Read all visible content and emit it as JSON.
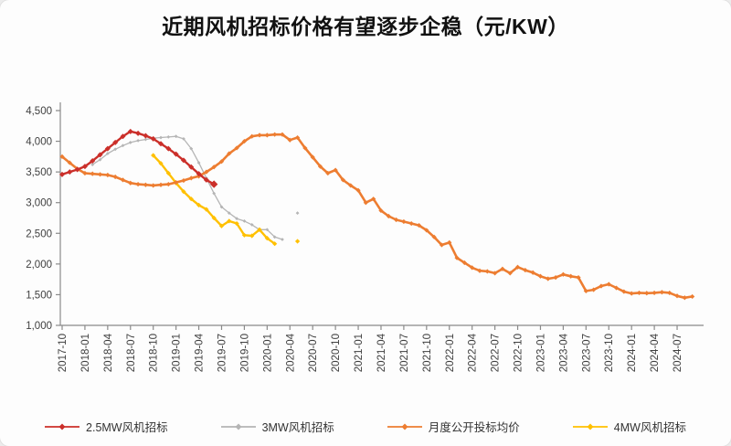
{
  "title": "近期风机招标价格有望逐步企稳（元/KW）",
  "colors": {
    "red": "#cb2f2a",
    "gray": "#b5b5b5",
    "orange": "#ed7d31",
    "yellow": "#ffc000",
    "axis": "#8a8a8a",
    "tick_text": "#404040",
    "title_text": "#111111"
  },
  "chart_data": {
    "type": "line",
    "title": "近期风机招标价格有望逐步企稳（元/KW）",
    "y_unit": "元/KW",
    "ylim": [
      1000,
      4500
    ],
    "y_tick_step": 500,
    "y_tick_labels": [
      "4,500",
      "4,000",
      "3,500",
      "3,000",
      "2,500",
      "2,000",
      "1,500",
      "1,000"
    ],
    "x_tick_labels": [
      "2017-10",
      "2018-01",
      "2018-04",
      "2018-07",
      "2018-10",
      "2019-01",
      "2019-04",
      "2019-07",
      "2019-10",
      "2020-01",
      "2020-04",
      "2020-07",
      "2020-10",
      "2021-01",
      "2021-04",
      "2021-07",
      "2021-10",
      "2022-01",
      "2022-04",
      "2022-07",
      "2022-10",
      "2023-01",
      "2023-04",
      "2023-07",
      "2023-10",
      "2024-01",
      "2024-04",
      "2024-07"
    ],
    "grid": false,
    "legend_position": "bottom",
    "series": [
      {
        "name": "2.5MW风机招标",
        "color": "#cb2f2a",
        "points": [
          [
            "2017-10",
            3460
          ],
          [
            "2017-11",
            3500
          ],
          [
            "2017-12",
            3540
          ],
          [
            "2018-01",
            3590
          ],
          [
            "2018-02",
            3680
          ],
          [
            "2018-03",
            3780
          ],
          [
            "2018-04",
            3880
          ],
          [
            "2018-05",
            3980
          ],
          [
            "2018-06",
            4080
          ],
          [
            "2018-07",
            4160
          ],
          [
            "2018-08",
            4130
          ],
          [
            "2018-09",
            4090
          ],
          [
            "2018-10",
            4040
          ],
          [
            "2018-11",
            3960
          ],
          [
            "2018-12",
            3880
          ],
          [
            "2019-01",
            3790
          ],
          [
            "2019-02",
            3690
          ],
          [
            "2019-03",
            3580
          ],
          [
            "2019-04",
            3470
          ],
          [
            "2019-05",
            3370
          ],
          [
            "2019-06",
            3300
          ]
        ]
      },
      {
        "name": "3MW风机招标",
        "color": "#b5b5b5",
        "points": [
          [
            "2018-02",
            3620
          ],
          [
            "2018-03",
            3700
          ],
          [
            "2018-04",
            3800
          ],
          [
            "2018-05",
            3870
          ],
          [
            "2018-06",
            3930
          ],
          [
            "2018-07",
            3980
          ],
          [
            "2018-08",
            4010
          ],
          [
            "2018-09",
            4030
          ],
          [
            "2018-10",
            4050
          ],
          [
            "2018-11",
            4060
          ],
          [
            "2018-12",
            4070
          ],
          [
            "2019-01",
            4080
          ],
          [
            "2019-02",
            4040
          ],
          [
            "2019-03",
            3880
          ],
          [
            "2019-04",
            3650
          ],
          [
            "2019-05",
            3400
          ],
          [
            "2019-06",
            3150
          ],
          [
            "2019-07",
            2930
          ],
          [
            "2019-08",
            2830
          ],
          [
            "2019-09",
            2740
          ],
          [
            "2019-10",
            2700
          ],
          [
            "2019-11",
            2640
          ],
          [
            "2019-12",
            2560
          ],
          [
            "2020-01",
            2560
          ],
          [
            "2020-02",
            2440
          ],
          [
            "2020-03",
            2400
          ],
          [
            "2020-05",
            2830
          ]
        ]
      },
      {
        "name": "月度公开投标均价",
        "color": "#ed7d31",
        "points": [
          [
            "2017-10",
            3750
          ],
          [
            "2017-11",
            3650
          ],
          [
            "2017-12",
            3550
          ],
          [
            "2018-01",
            3480
          ],
          [
            "2018-02",
            3470
          ],
          [
            "2018-03",
            3460
          ],
          [
            "2018-04",
            3450
          ],
          [
            "2018-05",
            3420
          ],
          [
            "2018-06",
            3370
          ],
          [
            "2018-07",
            3320
          ],
          [
            "2018-08",
            3300
          ],
          [
            "2018-09",
            3290
          ],
          [
            "2018-10",
            3280
          ],
          [
            "2018-11",
            3290
          ],
          [
            "2018-12",
            3300
          ],
          [
            "2019-01",
            3330
          ],
          [
            "2019-02",
            3360
          ],
          [
            "2019-03",
            3400
          ],
          [
            "2019-04",
            3430
          ],
          [
            "2019-05",
            3500
          ],
          [
            "2019-06",
            3580
          ],
          [
            "2019-07",
            3670
          ],
          [
            "2019-08",
            3800
          ],
          [
            "2019-09",
            3890
          ],
          [
            "2019-10",
            4000
          ],
          [
            "2019-11",
            4080
          ],
          [
            "2019-12",
            4100
          ],
          [
            "2020-01",
            4100
          ],
          [
            "2020-02",
            4110
          ],
          [
            "2020-03",
            4110
          ],
          [
            "2020-04",
            4020
          ],
          [
            "2020-05",
            4060
          ],
          [
            "2020-06",
            3890
          ],
          [
            "2020-07",
            3740
          ],
          [
            "2020-08",
            3590
          ],
          [
            "2020-09",
            3480
          ],
          [
            "2020-10",
            3530
          ],
          [
            "2020-11",
            3370
          ],
          [
            "2020-12",
            3280
          ],
          [
            "2021-01",
            3200
          ],
          [
            "2021-02",
            3000
          ],
          [
            "2021-03",
            3060
          ],
          [
            "2021-04",
            2870
          ],
          [
            "2021-05",
            2780
          ],
          [
            "2021-06",
            2720
          ],
          [
            "2021-07",
            2690
          ],
          [
            "2021-08",
            2660
          ],
          [
            "2021-09",
            2630
          ],
          [
            "2021-10",
            2550
          ],
          [
            "2021-11",
            2440
          ],
          [
            "2021-12",
            2310
          ],
          [
            "2022-01",
            2350
          ],
          [
            "2022-02",
            2100
          ],
          [
            "2022-03",
            2020
          ],
          [
            "2022-04",
            1940
          ],
          [
            "2022-05",
            1890
          ],
          [
            "2022-06",
            1880
          ],
          [
            "2022-07",
            1850
          ],
          [
            "2022-08",
            1920
          ],
          [
            "2022-09",
            1850
          ],
          [
            "2022-10",
            1950
          ],
          [
            "2022-11",
            1900
          ],
          [
            "2022-12",
            1860
          ],
          [
            "2023-01",
            1800
          ],
          [
            "2023-02",
            1760
          ],
          [
            "2023-03",
            1780
          ],
          [
            "2023-04",
            1830
          ],
          [
            "2023-05",
            1800
          ],
          [
            "2023-06",
            1780
          ],
          [
            "2023-07",
            1560
          ],
          [
            "2023-08",
            1580
          ],
          [
            "2023-09",
            1640
          ],
          [
            "2023-10",
            1670
          ],
          [
            "2023-11",
            1610
          ],
          [
            "2023-12",
            1550
          ],
          [
            "2024-01",
            1520
          ],
          [
            "2024-02",
            1530
          ],
          [
            "2024-03",
            1525
          ],
          [
            "2024-04",
            1530
          ],
          [
            "2024-05",
            1540
          ],
          [
            "2024-06",
            1530
          ],
          [
            "2024-07",
            1480
          ],
          [
            "2024-08",
            1450
          ],
          [
            "2024-09",
            1470
          ]
        ]
      },
      {
        "name": "4MW风机招标",
        "color": "#ffc000",
        "points": [
          [
            "2018-10",
            3770
          ],
          [
            "2018-11",
            3640
          ],
          [
            "2018-12",
            3480
          ],
          [
            "2019-01",
            3320
          ],
          [
            "2019-02",
            3180
          ],
          [
            "2019-03",
            3060
          ],
          [
            "2019-04",
            2960
          ],
          [
            "2019-05",
            2890
          ],
          [
            "2019-06",
            2750
          ],
          [
            "2019-07",
            2620
          ],
          [
            "2019-08",
            2700
          ],
          [
            "2019-09",
            2660
          ],
          [
            "2019-10",
            2470
          ],
          [
            "2019-11",
            2460
          ],
          [
            "2019-12",
            2560
          ],
          [
            "2020-01",
            2420
          ],
          [
            "2020-02",
            2330
          ],
          [
            "2020-05",
            2370
          ]
        ]
      }
    ]
  }
}
